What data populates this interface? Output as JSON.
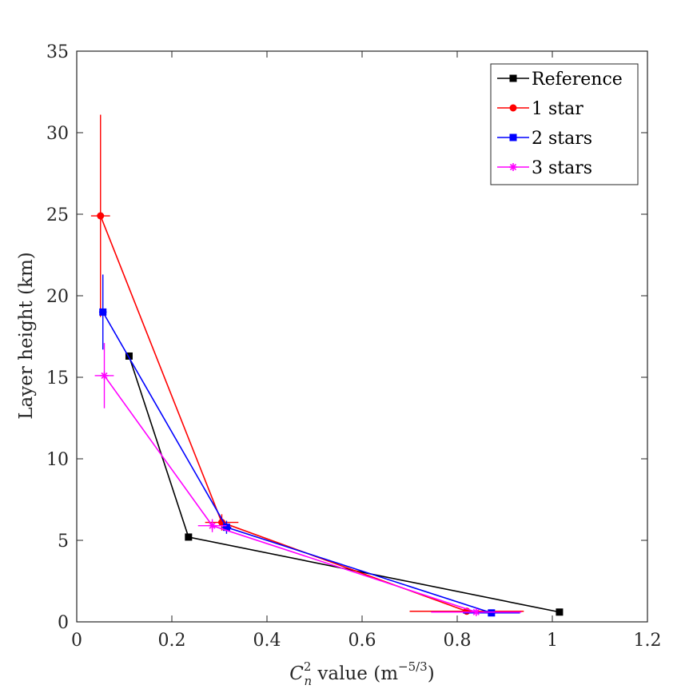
{
  "chart_data": {
    "type": "line",
    "xlabel_main": "C",
    "xlabel_sub": "n",
    "xlabel_sup": "2",
    "xlabel_rest": " value (m",
    "xlabel_unit_sup": "−5/3",
    "xlabel_close": ")",
    "ylabel": "Layer height (km)",
    "xlim": [
      0,
      1.2
    ],
    "ylim": [
      0,
      35
    ],
    "xticks": [
      0,
      0.2,
      0.4,
      0.6,
      0.8,
      1,
      1.2
    ],
    "xtick_labels": [
      "0",
      "0.2",
      "0.4",
      "0.6",
      "0.8",
      "1",
      "1.2"
    ],
    "yticks": [
      0,
      5,
      10,
      15,
      20,
      25,
      30,
      35
    ],
    "ytick_labels": [
      "0",
      "5",
      "10",
      "15",
      "20",
      "25",
      "30",
      "35"
    ],
    "grid": false,
    "legend_position": "top-right",
    "series": [
      {
        "name": "Reference",
        "color": "#000000",
        "marker": "square",
        "points": [
          {
            "x": 0.11,
            "y": 16.3
          },
          {
            "x": 0.235,
            "y": 5.2
          },
          {
            "x": 1.015,
            "y": 0.6
          }
        ]
      },
      {
        "name": "1 star",
        "color": "#ff0000",
        "marker": "circle",
        "points": [
          {
            "x": 0.05,
            "y": 24.9,
            "xerr": 0.02,
            "yerr": 6.2
          },
          {
            "x": 0.305,
            "y": 6.1,
            "xerr": 0.035,
            "yerr": 0.5
          },
          {
            "x": 0.82,
            "y": 0.65,
            "xerr": 0.12,
            "yerr": 0.2
          }
        ]
      },
      {
        "name": "2 stars",
        "color": "#0000ff",
        "marker": "square",
        "points": [
          {
            "x": 0.055,
            "y": 19.0,
            "xerr": 0.008,
            "yerr": 2.3
          },
          {
            "x": 0.315,
            "y": 5.8,
            "xerr": 0.01,
            "yerr": 0.4
          },
          {
            "x": 0.872,
            "y": 0.55,
            "xerr": 0.06,
            "yerr": 0.15
          }
        ]
      },
      {
        "name": "3 stars",
        "color": "#ff00ff",
        "marker": "star",
        "points": [
          {
            "x": 0.058,
            "y": 15.1,
            "xerr": 0.02,
            "yerr": 2.0
          },
          {
            "x": 0.285,
            "y": 5.9,
            "xerr": 0.03,
            "yerr": 0.4
          },
          {
            "x": 0.84,
            "y": 0.6,
            "xerr": 0.095,
            "yerr": 0.15
          }
        ]
      }
    ]
  }
}
